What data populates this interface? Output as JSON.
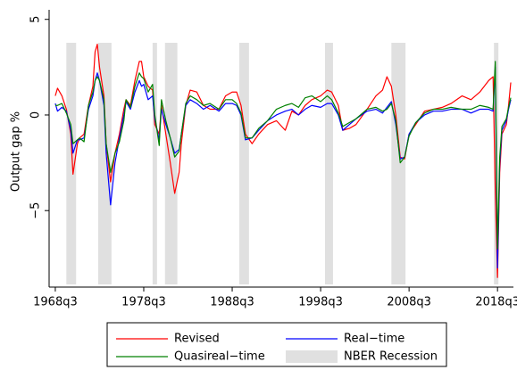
{
  "chart_data": {
    "type": "line",
    "y_label": "Output gap %",
    "x": [
      1968.5,
      1968.75,
      1969.25,
      1969.75,
      1970.25,
      1970.5,
      1971,
      1971.25,
      1971.75,
      1972.25,
      1972.75,
      1973,
      1973.25,
      1973.5,
      1974,
      1974.25,
      1974.75,
      1975.25,
      1975.75,
      1976.25,
      1976.5,
      1977,
      1977.5,
      1978,
      1978.25,
      1978.5,
      1979,
      1979.5,
      1979.75,
      1980.25,
      1980.5,
      1981,
      1981.5,
      1982,
      1982.5,
      1982.75,
      1983.25,
      1983.75,
      1984.5,
      1985.25,
      1986,
      1987,
      1987.75,
      1988.5,
      1989,
      1989.5,
      1990,
      1990.75,
      1991.5,
      1992.5,
      1993.5,
      1994.5,
      1995.25,
      1996,
      1996.75,
      1997.5,
      1998.5,
      1999.25,
      1999.75,
      2000.5,
      2001,
      2001.75,
      2002.5,
      2003.75,
      2004.75,
      2005.5,
      2006,
      2006.5,
      2007,
      2007.5,
      2008,
      2008.5,
      2009.25,
      2010.25,
      2011.25,
      2012.25,
      2013.25,
      2014.5,
      2015.5,
      2016.5,
      2017.5,
      2018,
      2018.25,
      2018.5,
      2018.75,
      2019,
      2019.5,
      2019.75,
      2020
    ],
    "series": [
      {
        "name": "Revised",
        "color": "#ff0000",
        "values": [
          1.0,
          1.4,
          1.0,
          0.3,
          -1.0,
          -3.1,
          -1.5,
          -1.2,
          -1.0,
          0.5,
          1.5,
          3.3,
          3.7,
          2.5,
          1.0,
          -1.5,
          -3.5,
          -2.0,
          -1.0,
          0.3,
          0.8,
          0.5,
          1.8,
          2.8,
          2.8,
          2.0,
          1.5,
          1.3,
          -0.5,
          -1.0,
          0.5,
          -1.0,
          -2.5,
          -4.1,
          -3.0,
          -1.5,
          0.5,
          1.3,
          1.2,
          0.5,
          0.3,
          0.3,
          1.0,
          1.2,
          1.2,
          0.5,
          -1.0,
          -1.5,
          -1.0,
          -0.5,
          -0.3,
          -0.8,
          0.2,
          0.0,
          0.5,
          0.8,
          1.0,
          1.3,
          1.2,
          0.5,
          -0.8,
          -0.7,
          -0.5,
          0.3,
          1.0,
          1.3,
          2.0,
          1.5,
          0.0,
          -2.2,
          -2.3,
          -1.0,
          -0.5,
          0.2,
          0.3,
          0.4,
          0.6,
          1.0,
          0.8,
          1.2,
          1.8,
          2.0,
          -4.0,
          -8.5,
          -3.0,
          -1.0,
          -0.5,
          0.5,
          1.7
        ]
      },
      {
        "name": "Real−time",
        "color": "#0000ff",
        "values": [
          0.6,
          0.2,
          0.4,
          0.2,
          -0.8,
          -2.0,
          -1.3,
          -1.3,
          -1.2,
          0.3,
          1.0,
          1.8,
          2.2,
          1.8,
          0.5,
          -2.0,
          -4.7,
          -2.5,
          -1.2,
          0.0,
          0.7,
          0.3,
          1.2,
          1.8,
          1.5,
          1.6,
          0.8,
          1.0,
          -0.2,
          -1.3,
          0.3,
          -0.5,
          -1.2,
          -2.0,
          -1.8,
          -1.0,
          0.5,
          0.8,
          0.6,
          0.3,
          0.5,
          0.2,
          0.6,
          0.6,
          0.5,
          0.0,
          -1.3,
          -1.2,
          -0.8,
          -0.3,
          0.0,
          0.2,
          0.3,
          0.0,
          0.3,
          0.5,
          0.4,
          0.6,
          0.6,
          0.0,
          -0.8,
          -0.5,
          -0.2,
          0.2,
          0.3,
          0.1,
          0.4,
          0.7,
          -0.5,
          -2.3,
          -2.2,
          -1.0,
          -0.4,
          0.0,
          0.2,
          0.2,
          0.3,
          0.3,
          0.1,
          0.3,
          0.3,
          0.2,
          2.5,
          -8.0,
          -2.5,
          -0.8,
          -0.3,
          0.3,
          0.8
        ]
      },
      {
        "name": "Quasireal−time",
        "color": "#008000",
        "values": [
          0.5,
          0.5,
          0.6,
          0.1,
          -0.5,
          -1.5,
          -1.3,
          -1.2,
          -1.4,
          0.5,
          1.2,
          1.8,
          2.0,
          1.8,
          0.8,
          -1.5,
          -3.0,
          -2.0,
          -1.4,
          -0.3,
          0.8,
          0.4,
          1.5,
          2.2,
          2.0,
          1.9,
          1.2,
          1.6,
          0.0,
          -1.6,
          0.8,
          -0.3,
          -1.2,
          -2.2,
          -1.9,
          -1.0,
          0.6,
          1.0,
          0.8,
          0.5,
          0.6,
          0.3,
          0.8,
          0.8,
          0.6,
          0.1,
          -1.2,
          -1.2,
          -0.7,
          -0.3,
          0.3,
          0.5,
          0.6,
          0.4,
          0.9,
          1.0,
          0.7,
          1.0,
          0.8,
          0.1,
          -0.6,
          -0.4,
          -0.2,
          0.3,
          0.4,
          0.2,
          0.3,
          0.6,
          -0.3,
          -2.5,
          -2.2,
          -1.1,
          -0.4,
          0.1,
          0.3,
          0.3,
          0.4,
          0.3,
          0.3,
          0.5,
          0.4,
          0.3,
          2.8,
          -7.0,
          -2.2,
          -0.6,
          -0.2,
          0.4,
          0.9
        ]
      }
    ],
    "recession": {
      "name": "NBER Recession",
      "color": "#e0e0e0",
      "ranges": [
        [
          1969.75,
          1970.85
        ],
        [
          1973.35,
          1974.85
        ],
        [
          1979.5,
          1980.0
        ],
        [
          1980.9,
          1982.3
        ],
        [
          1989.3,
          1990.4
        ],
        [
          1999.0,
          1999.9
        ],
        [
          2006.5,
          2008.1
        ],
        [
          2018.1,
          2018.6
        ]
      ]
    },
    "xlim": [
      1967.8,
      2020.3
    ],
    "xticks": [
      {
        "value": 1968.5,
        "label": "1968q3"
      },
      {
        "value": 1978.5,
        "label": "1978q3"
      },
      {
        "value": 1988.5,
        "label": "1988q3"
      },
      {
        "value": 1998.5,
        "label": "1998q3"
      },
      {
        "value": 2008.5,
        "label": "2008q3"
      },
      {
        "value": 2018.5,
        "label": "2018q3"
      }
    ],
    "ylim": [
      -9,
      5.5
    ],
    "yticks": [
      {
        "value": -5,
        "label": "−5"
      },
      0,
      5
    ],
    "grid": false
  }
}
